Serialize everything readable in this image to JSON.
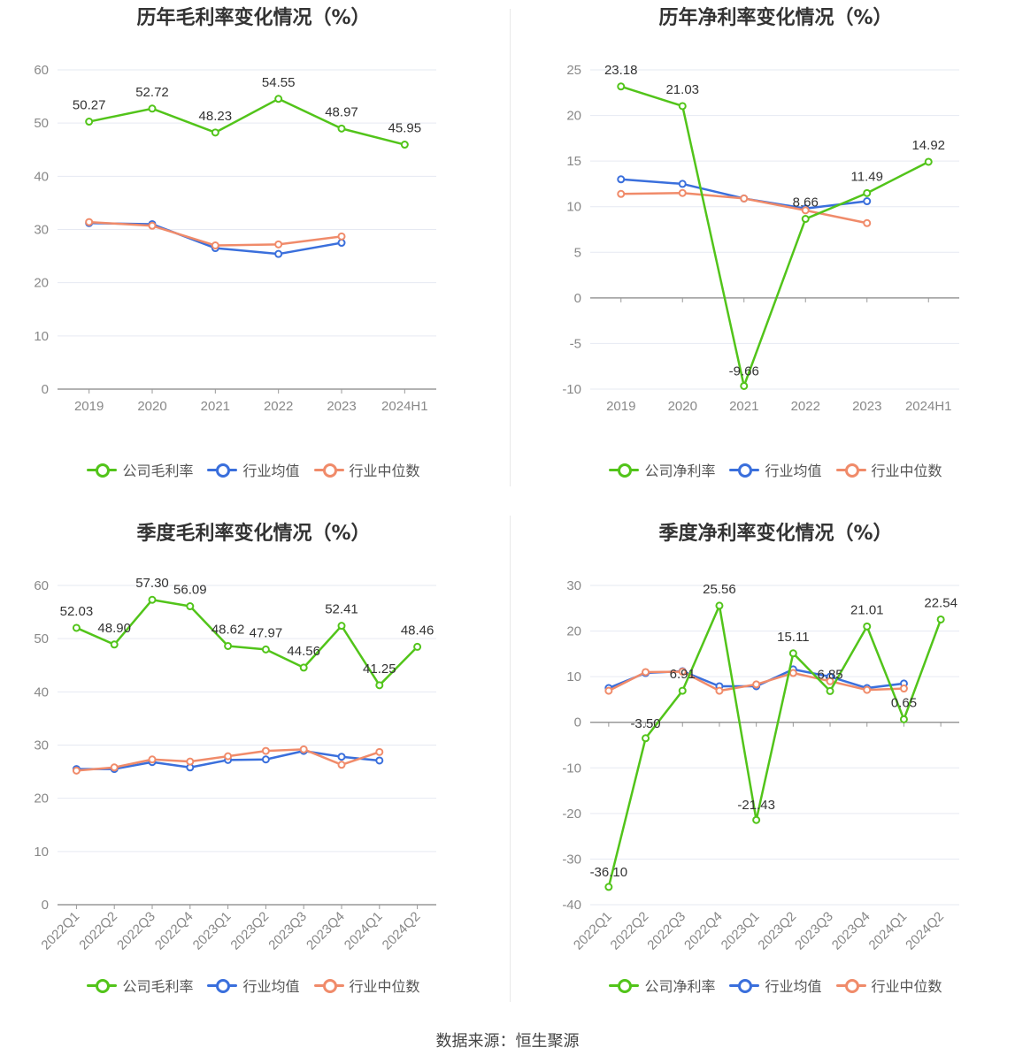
{
  "colors": {
    "company": "#52c41a",
    "industry_avg": "#3a6fdc",
    "industry_median": "#f08b6a",
    "grid": "#e6e9f2",
    "axis": "#999999",
    "tick_text": "#888888",
    "label_text": "#333333"
  },
  "source": "数据来源：恒生聚源",
  "chart_data": [
    {
      "type": "line",
      "title": "历年毛利率变化情况（%）",
      "categories": [
        "2019",
        "2020",
        "2021",
        "2022",
        "2023",
        "2024H1"
      ],
      "ylim": [
        0,
        60
      ],
      "yticks": [
        0,
        10,
        20,
        30,
        40,
        50,
        60
      ],
      "rotate_x": false,
      "grid": true,
      "legend_position": "bottom-center",
      "series": [
        {
          "name": "公司毛利率",
          "key": "company",
          "labels": true,
          "values": [
            50.27,
            52.72,
            48.23,
            54.55,
            48.97,
            45.95
          ]
        },
        {
          "name": "行业均值",
          "key": "industry_avg",
          "labels": false,
          "values": [
            31.2,
            31.0,
            26.5,
            25.4,
            27.5,
            null
          ]
        },
        {
          "name": "行业中位数",
          "key": "industry_median",
          "labels": false,
          "values": [
            31.4,
            30.7,
            27.0,
            27.2,
            28.7,
            null
          ]
        }
      ],
      "legend": [
        "公司毛利率",
        "行业均值",
        "行业中位数"
      ]
    },
    {
      "type": "line",
      "title": "历年净利率变化情况（%）",
      "categories": [
        "2019",
        "2020",
        "2021",
        "2022",
        "2023",
        "2024H1"
      ],
      "ylim": [
        -10,
        25
      ],
      "yticks": [
        -10,
        -5,
        0,
        5,
        10,
        15,
        20,
        25
      ],
      "rotate_x": false,
      "grid": true,
      "legend_position": "bottom-center",
      "series": [
        {
          "name": "公司净利率",
          "key": "company",
          "labels": true,
          "values": [
            23.18,
            21.03,
            -9.66,
            8.66,
            11.49,
            14.92
          ]
        },
        {
          "name": "行业均值",
          "key": "industry_avg",
          "labels": false,
          "values": [
            13.0,
            12.5,
            10.9,
            9.8,
            10.6,
            null
          ]
        },
        {
          "name": "行业中位数",
          "key": "industry_median",
          "labels": false,
          "values": [
            11.4,
            11.5,
            10.9,
            9.6,
            8.2,
            null
          ]
        }
      ],
      "legend": [
        "公司净利率",
        "行业均值",
        "行业中位数"
      ]
    },
    {
      "type": "line",
      "title": "季度毛利率变化情况（%）",
      "categories": [
        "2022Q1",
        "2022Q2",
        "2022Q3",
        "2022Q4",
        "2023Q1",
        "2023Q2",
        "2023Q3",
        "2023Q4",
        "2024Q1",
        "2024Q2"
      ],
      "ylim": [
        0,
        60
      ],
      "yticks": [
        0,
        10,
        20,
        30,
        40,
        50,
        60
      ],
      "rotate_x": true,
      "grid": true,
      "legend_position": "bottom-center",
      "series": [
        {
          "name": "公司毛利率",
          "key": "company",
          "labels": true,
          "values": [
            52.03,
            48.9,
            57.3,
            56.09,
            48.62,
            47.97,
            44.56,
            52.41,
            41.25,
            48.46
          ]
        },
        {
          "name": "行业均值",
          "key": "industry_avg",
          "labels": false,
          "values": [
            25.5,
            25.5,
            26.8,
            25.8,
            27.2,
            27.3,
            28.9,
            27.8,
            27.1,
            null
          ]
        },
        {
          "name": "行业中位数",
          "key": "industry_median",
          "labels": false,
          "values": [
            25.2,
            25.8,
            27.3,
            26.9,
            27.9,
            28.9,
            29.2,
            26.3,
            28.7,
            null
          ]
        }
      ],
      "value_labels": [
        "52.03",
        "48.90",
        "57.30",
        "56.09",
        "48.62",
        "47.97",
        "44.56",
        "52.41",
        "41.25",
        "48.46"
      ],
      "legend": [
        "公司毛利率",
        "行业均值",
        "行业中位数"
      ]
    },
    {
      "type": "line",
      "title": "季度净利率变化情况（%）",
      "categories": [
        "2022Q1",
        "2022Q2",
        "2022Q3",
        "2022Q4",
        "2023Q1",
        "2023Q2",
        "2023Q3",
        "2023Q4",
        "2024Q1",
        "2024Q2"
      ],
      "ylim": [
        -40,
        30
      ],
      "yticks": [
        -40,
        -30,
        -20,
        -10,
        0,
        10,
        20,
        30
      ],
      "rotate_x": true,
      "grid": true,
      "legend_position": "bottom-center",
      "series": [
        {
          "name": "公司净利率",
          "key": "company",
          "labels": true,
          "values": [
            -36.1,
            -3.5,
            6.91,
            25.56,
            -21.43,
            15.11,
            6.85,
            21.01,
            0.65,
            22.54
          ]
        },
        {
          "name": "行业均值",
          "key": "industry_avg",
          "labels": false,
          "values": [
            7.5,
            10.8,
            11.2,
            7.9,
            7.9,
            11.6,
            10.0,
            7.5,
            8.5,
            null
          ]
        },
        {
          "name": "行业中位数",
          "key": "industry_median",
          "labels": false,
          "values": [
            6.9,
            11.0,
            11.1,
            6.9,
            8.3,
            10.8,
            9.0,
            7.1,
            7.4,
            null
          ]
        }
      ],
      "value_labels": [
        "-36.10",
        "-3.50",
        "6.91",
        "25.56",
        "-21.43",
        "15.11",
        "6.85",
        "21.01",
        "0.65",
        "22.54"
      ],
      "legend": [
        "公司净利率",
        "行业均值",
        "行业中位数"
      ]
    }
  ]
}
